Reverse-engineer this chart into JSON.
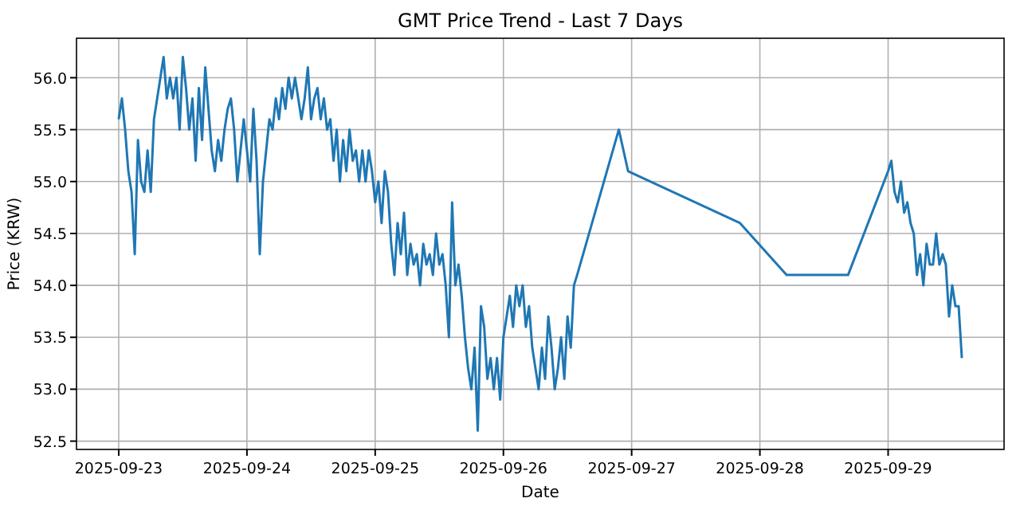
{
  "chart_data": {
    "type": "line",
    "title": "GMT Price Trend - Last 7 Days",
    "xlabel": "Date",
    "ylabel": "Price (KRW)",
    "grid": true,
    "xlim": [
      "2025-09-22T16:06",
      "2025-09-29T21:42"
    ],
    "xticks": [
      "2025-09-23",
      "2025-09-24",
      "2025-09-25",
      "2025-09-26",
      "2025-09-27",
      "2025-09-28",
      "2025-09-29"
    ],
    "ylim": [
      52.42,
      56.38
    ],
    "yticks": [
      {
        "value": 52.5,
        "label": "52.5"
      },
      {
        "value": 53,
        "label": "53.0"
      },
      {
        "value": 53.5,
        "label": "53.5"
      },
      {
        "value": 54,
        "label": "54.0"
      },
      {
        "value": 54.5,
        "label": "54.5"
      },
      {
        "value": 55,
        "label": "55.0"
      },
      {
        "value": 55.5,
        "label": "55.5"
      },
      {
        "value": 56,
        "label": "56.0"
      }
    ],
    "series": [
      {
        "color": "#1f77b4",
        "x": [
          "2025-09-23T00:00",
          "2025-09-23T00:36",
          "2025-09-23T01:12",
          "2025-09-23T01:48",
          "2025-09-23T02:24",
          "2025-09-23T03:00",
          "2025-09-23T03:36",
          "2025-09-23T04:12",
          "2025-09-23T04:48",
          "2025-09-23T05:24",
          "2025-09-23T06:00",
          "2025-09-23T06:36",
          "2025-09-23T07:12",
          "2025-09-23T07:48",
          "2025-09-23T08:24",
          "2025-09-23T09:00",
          "2025-09-23T09:36",
          "2025-09-23T10:12",
          "2025-09-23T10:48",
          "2025-09-23T11:24",
          "2025-09-23T12:00",
          "2025-09-23T12:36",
          "2025-09-23T13:12",
          "2025-09-23T13:48",
          "2025-09-23T14:24",
          "2025-09-23T15:00",
          "2025-09-23T15:36",
          "2025-09-23T16:12",
          "2025-09-23T16:48",
          "2025-09-23T17:24",
          "2025-09-23T18:00",
          "2025-09-23T18:36",
          "2025-09-23T19:12",
          "2025-09-23T19:48",
          "2025-09-23T20:24",
          "2025-09-23T21:00",
          "2025-09-23T21:36",
          "2025-09-23T22:12",
          "2025-09-23T22:48",
          "2025-09-23T23:24",
          "2025-09-24T00:00",
          "2025-09-24T00:36",
          "2025-09-24T01:12",
          "2025-09-24T01:48",
          "2025-09-24T02:24",
          "2025-09-24T03:00",
          "2025-09-24T03:36",
          "2025-09-24T04:12",
          "2025-09-24T04:48",
          "2025-09-24T05:24",
          "2025-09-24T06:00",
          "2025-09-24T06:36",
          "2025-09-24T07:12",
          "2025-09-24T07:48",
          "2025-09-24T08:24",
          "2025-09-24T09:00",
          "2025-09-24T09:36",
          "2025-09-24T10:12",
          "2025-09-24T10:48",
          "2025-09-24T11:24",
          "2025-09-24T12:00",
          "2025-09-24T12:36",
          "2025-09-24T13:12",
          "2025-09-24T13:48",
          "2025-09-24T14:24",
          "2025-09-24T15:00",
          "2025-09-24T15:36",
          "2025-09-24T16:12",
          "2025-09-24T16:48",
          "2025-09-24T17:24",
          "2025-09-24T18:00",
          "2025-09-24T18:36",
          "2025-09-24T19:12",
          "2025-09-24T19:48",
          "2025-09-24T20:24",
          "2025-09-24T21:00",
          "2025-09-24T21:36",
          "2025-09-24T22:12",
          "2025-09-24T22:48",
          "2025-09-24T23:24",
          "2025-09-25T00:00",
          "2025-09-25T00:36",
          "2025-09-25T01:12",
          "2025-09-25T01:48",
          "2025-09-25T02:24",
          "2025-09-25T03:00",
          "2025-09-25T03:36",
          "2025-09-25T04:12",
          "2025-09-25T04:48",
          "2025-09-25T05:24",
          "2025-09-25T06:00",
          "2025-09-25T06:36",
          "2025-09-25T07:12",
          "2025-09-25T07:48",
          "2025-09-25T08:24",
          "2025-09-25T09:00",
          "2025-09-25T09:36",
          "2025-09-25T10:12",
          "2025-09-25T10:48",
          "2025-09-25T11:24",
          "2025-09-25T12:00",
          "2025-09-25T12:36",
          "2025-09-25T13:12",
          "2025-09-25T13:48",
          "2025-09-25T14:24",
          "2025-09-25T15:00",
          "2025-09-25T15:36",
          "2025-09-25T16:12",
          "2025-09-25T16:48",
          "2025-09-25T17:24",
          "2025-09-25T18:00",
          "2025-09-25T18:36",
          "2025-09-25T19:12",
          "2025-09-25T19:48",
          "2025-09-25T20:24",
          "2025-09-25T21:00",
          "2025-09-25T21:36",
          "2025-09-25T22:12",
          "2025-09-25T22:48",
          "2025-09-25T23:24",
          "2025-09-26T00:00",
          "2025-09-26T00:36",
          "2025-09-26T01:12",
          "2025-09-26T01:48",
          "2025-09-26T02:24",
          "2025-09-26T03:00",
          "2025-09-26T03:36",
          "2025-09-26T04:12",
          "2025-09-26T04:48",
          "2025-09-26T05:24",
          "2025-09-26T06:00",
          "2025-09-26T06:36",
          "2025-09-26T07:12",
          "2025-09-26T07:48",
          "2025-09-26T08:24",
          "2025-09-26T09:00",
          "2025-09-26T09:36",
          "2025-09-26T10:12",
          "2025-09-26T10:48",
          "2025-09-26T11:24",
          "2025-09-26T12:00",
          "2025-09-26T12:36",
          "2025-09-26T13:12",
          "2025-09-26T13:48",
          "2025-09-26T21:36",
          "2025-09-26T23:20",
          "2025-09-27T20:17",
          "2025-09-28T05:00",
          "2025-09-28T16:30",
          "2025-09-29T00:00",
          "2025-09-29T00:36",
          "2025-09-29T01:12",
          "2025-09-29T01:48",
          "2025-09-29T02:24",
          "2025-09-29T03:00",
          "2025-09-29T03:36",
          "2025-09-29T04:12",
          "2025-09-29T04:48",
          "2025-09-29T05:24",
          "2025-09-29T06:00",
          "2025-09-29T06:36",
          "2025-09-29T07:12",
          "2025-09-29T07:48",
          "2025-09-29T08:24",
          "2025-09-29T09:00",
          "2025-09-29T09:36",
          "2025-09-29T10:12",
          "2025-09-29T10:48",
          "2025-09-29T11:24",
          "2025-09-29T12:00",
          "2025-09-29T12:36",
          "2025-09-29T13:12",
          "2025-09-29T13:48"
        ],
        "values": [
          55.6,
          55.8,
          55.5,
          55.1,
          54.9,
          54.3,
          55.4,
          55.0,
          54.9,
          55.3,
          54.9,
          55.6,
          55.8,
          56.0,
          56.2,
          55.8,
          56.0,
          55.8,
          56.0,
          55.5,
          56.2,
          55.9,
          55.5,
          55.8,
          55.2,
          55.9,
          55.4,
          56.1,
          55.7,
          55.3,
          55.1,
          55.4,
          55.2,
          55.5,
          55.7,
          55.8,
          55.5,
          55.0,
          55.3,
          55.6,
          55.3,
          55.0,
          55.7,
          55.2,
          54.3,
          55.0,
          55.3,
          55.6,
          55.5,
          55.8,
          55.6,
          55.9,
          55.7,
          56.0,
          55.8,
          56.0,
          55.8,
          55.6,
          55.8,
          56.1,
          55.6,
          55.8,
          55.9,
          55.6,
          55.8,
          55.5,
          55.6,
          55.2,
          55.5,
          55.0,
          55.4,
          55.1,
          55.5,
          55.2,
          55.3,
          55.0,
          55.3,
          55.0,
          55.3,
          55.1,
          54.8,
          55.0,
          54.6,
          55.1,
          54.9,
          54.4,
          54.1,
          54.6,
          54.3,
          54.7,
          54.1,
          54.4,
          54.2,
          54.3,
          54.0,
          54.4,
          54.2,
          54.3,
          54.1,
          54.5,
          54.2,
          54.3,
          54.0,
          53.5,
          54.8,
          54.0,
          54.2,
          53.9,
          53.5,
          53.2,
          53.0,
          53.4,
          52.6,
          53.8,
          53.6,
          53.1,
          53.3,
          53.0,
          53.3,
          52.9,
          53.5,
          53.7,
          53.9,
          53.6,
          54.0,
          53.8,
          54.0,
          53.6,
          53.8,
          53.4,
          53.2,
          53.0,
          53.4,
          53.1,
          53.7,
          53.4,
          53.0,
          53.2,
          53.5,
          53.1,
          53.7,
          53.4,
          54.0,
          54.1,
          55.5,
          55.1,
          54.6,
          54.1,
          54.1,
          55.1,
          55.2,
          54.9,
          54.8,
          55.0,
          54.7,
          54.8,
          54.6,
          54.5,
          54.1,
          54.3,
          54.0,
          54.4,
          54.2,
          54.2,
          54.5,
          54.2,
          54.3,
          54.2,
          53.7,
          54.0,
          53.8,
          53.8,
          53.3
        ]
      }
    ]
  }
}
